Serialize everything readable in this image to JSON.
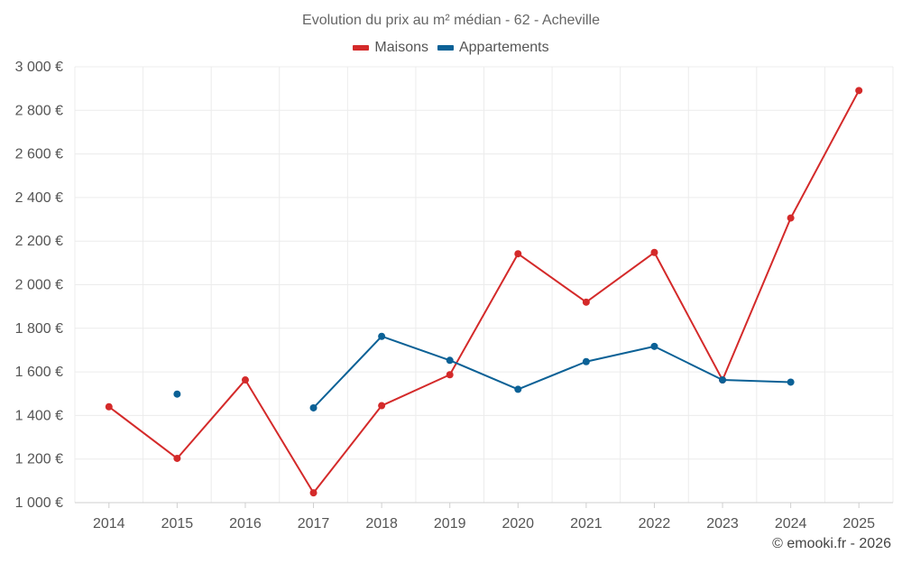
{
  "chart_data": {
    "type": "line",
    "title": "Evolution du prix au m² médian - 62 - Acheville",
    "x": [
      "2014",
      "2015",
      "2016",
      "2017",
      "2018",
      "2019",
      "2020",
      "2021",
      "2022",
      "2023",
      "2024",
      "2025"
    ],
    "ylim": [
      1000,
      3000
    ],
    "yticks": [
      1000,
      1200,
      1400,
      1600,
      1800,
      2000,
      2200,
      2400,
      2600,
      2800,
      3000
    ],
    "ytick_labels": [
      "1 000 €",
      "1 200 €",
      "1 400 €",
      "1 600 €",
      "1 800 €",
      "2 000 €",
      "2 200 €",
      "2 400 €",
      "2 600 €",
      "2 800 €",
      "3 000 €"
    ],
    "grid": true,
    "legend_position": "top-center",
    "series": [
      {
        "name": "Maisons",
        "color": "#d42a2a",
        "values": [
          1440,
          1203,
          1563,
          1045,
          1445,
          1587,
          2142,
          1920,
          2148,
          1563,
          2306,
          2891
        ]
      },
      {
        "name": "Appartements",
        "color": "#0b6196",
        "values": [
          null,
          1498,
          null,
          1435,
          1763,
          1653,
          1520,
          1647,
          1717,
          1563,
          1553,
          null
        ]
      }
    ]
  },
  "credit": "© emooki.fr - 2026"
}
